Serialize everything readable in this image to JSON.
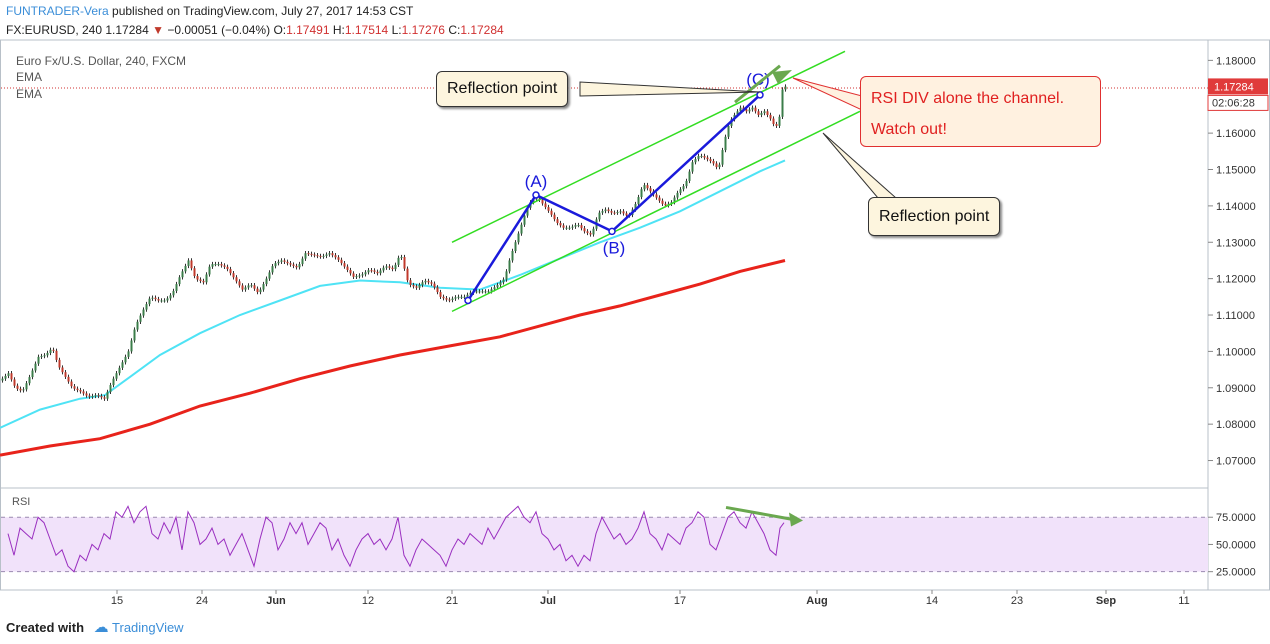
{
  "header": {
    "author": "FUNTRADER-Vera",
    "published": "published on TradingView.com, July 27, 2017 14:53 CST",
    "symbol": "FX:EURUSD, 240",
    "last_price": "1.17284",
    "change": "−0.00051 (−0.04%)",
    "open_label": "O:",
    "open": "1.17491",
    "high_label": "H:",
    "high": "1.17514",
    "low_label": "L:",
    "low": "1.17276",
    "close_label": "C:",
    "close": "1.17284"
  },
  "legend": {
    "title": "Euro Fx/U.S. Dollar, 240, FXCM",
    "ema1": "EMA",
    "ema2": "EMA",
    "rsi": "RSI"
  },
  "annotations": {
    "reflection_top": "Reflection point",
    "reflection_bottom": "Reflection point",
    "rsi_div_line1": "RSI DIV alone the channel.",
    "rsi_div_line2": "Watch out!",
    "wave_a": "(A)",
    "wave_b": "(B)",
    "wave_c": "(C)"
  },
  "price_tags": {
    "last": "1.17284",
    "countdown": "02:06:28"
  },
  "footer": {
    "created_with": "Created with",
    "brand": "TradingView"
  },
  "colors": {
    "up": "#3b7d4a",
    "down": "#c0392b",
    "ema_fast": "#4fe3f5",
    "ema_slow": "#e8231b",
    "channel": "#33dd22",
    "wave": "#1a1adb",
    "rsi_line": "#9a2fc0",
    "rsi_band": "#f1e2fa",
    "arrow": "#6aa84f"
  },
  "chart_data": [
    {
      "type": "candlestick",
      "title": "Euro Fx/U.S. Dollar, 240, FXCM",
      "x_ticks": [
        "15",
        "24",
        "Jun",
        "12",
        "21",
        "Jul",
        "17",
        "Aug",
        "14",
        "23",
        "Sep",
        "11"
      ],
      "y_ticks": [
        "1.18000",
        "1.17000",
        "1.16000",
        "1.15000",
        "1.14000",
        "1.13000",
        "1.12000",
        "1.11000",
        "1.10000",
        "1.09000",
        "1.08000",
        "1.07000"
      ],
      "ylim": [
        1.063,
        1.1845
      ],
      "price_path": [
        [
          0,
          1.092
        ],
        [
          8,
          1.094
        ],
        [
          15,
          1.09
        ],
        [
          22,
          1.089
        ],
        [
          30,
          1.0935
        ],
        [
          38,
          1.0985
        ],
        [
          45,
          1.099
        ],
        [
          52,
          1.101
        ],
        [
          58,
          1.096
        ],
        [
          65,
          1.093
        ],
        [
          72,
          1.09
        ],
        [
          80,
          1.089
        ],
        [
          88,
          1.0875
        ],
        [
          96,
          1.088
        ],
        [
          104,
          1.087
        ],
        [
          112,
          1.092
        ],
        [
          120,
          1.096
        ],
        [
          128,
          1.1
        ],
        [
          135,
          1.107
        ],
        [
          142,
          1.111
        ],
        [
          150,
          1.115
        ],
        [
          158,
          1.114
        ],
        [
          165,
          1.114
        ],
        [
          172,
          1.116
        ],
        [
          180,
          1.121
        ],
        [
          188,
          1.125
        ],
        [
          195,
          1.12
        ],
        [
          203,
          1.119
        ],
        [
          210,
          1.124
        ],
        [
          218,
          1.124
        ],
        [
          226,
          1.123
        ],
        [
          234,
          1.12
        ],
        [
          242,
          1.117
        ],
        [
          250,
          1.1185
        ],
        [
          258,
          1.116
        ],
        [
          266,
          1.12
        ],
        [
          273,
          1.124
        ],
        [
          281,
          1.125
        ],
        [
          289,
          1.124
        ],
        [
          297,
          1.123
        ],
        [
          305,
          1.127
        ],
        [
          313,
          1.1265
        ],
        [
          321,
          1.126
        ],
        [
          329,
          1.127
        ],
        [
          337,
          1.1255
        ],
        [
          345,
          1.123
        ],
        [
          353,
          1.1205
        ],
        [
          361,
          1.121
        ],
        [
          369,
          1.1225
        ],
        [
          377,
          1.1215
        ],
        [
          385,
          1.1235
        ],
        [
          393,
          1.1225
        ],
        [
          400,
          1.127
        ],
        [
          408,
          1.1185
        ],
        [
          416,
          1.1175
        ],
        [
          424,
          1.1195
        ],
        [
          432,
          1.1185
        ],
        [
          440,
          1.115
        ],
        [
          448,
          1.114
        ],
        [
          456,
          1.115
        ],
        [
          464,
          1.115
        ],
        [
          472,
          1.1165
        ],
        [
          480,
          1.1165
        ],
        [
          488,
          1.1165
        ],
        [
          496,
          1.118
        ],
        [
          504,
          1.12
        ],
        [
          510,
          1.126
        ],
        [
          515,
          1.13
        ],
        [
          520,
          1.134
        ],
        [
          526,
          1.139
        ],
        [
          532,
          1.142
        ],
        [
          538,
          1.142
        ],
        [
          544,
          1.14
        ],
        [
          550,
          1.138
        ],
        [
          556,
          1.1355
        ],
        [
          563,
          1.134
        ],
        [
          570,
          1.134
        ],
        [
          577,
          1.135
        ],
        [
          584,
          1.133
        ],
        [
          591,
          1.132
        ],
        [
          598,
          1.138
        ],
        [
          605,
          1.139
        ],
        [
          612,
          1.138
        ],
        [
          620,
          1.1385
        ],
        [
          628,
          1.137
        ],
        [
          636,
          1.141
        ],
        [
          643,
          1.146
        ],
        [
          650,
          1.144
        ],
        [
          657,
          1.142
        ],
        [
          664,
          1.14
        ],
        [
          671,
          1.141
        ],
        [
          678,
          1.144
        ],
        [
          685,
          1.146
        ],
        [
          692,
          1.152
        ],
        [
          699,
          1.154
        ],
        [
          706,
          1.153
        ],
        [
          712,
          1.152
        ],
        [
          718,
          1.15
        ],
        [
          724,
          1.158
        ],
        [
          729,
          1.163
        ],
        [
          734,
          1.165
        ],
        [
          740,
          1.167
        ],
        [
          746,
          1.166
        ],
        [
          752,
          1.167
        ],
        [
          758,
          1.165
        ],
        [
          764,
          1.166
        ],
        [
          770,
          1.164
        ],
        [
          774,
          1.162
        ],
        [
          778,
          1.162
        ],
        [
          782,
          1.172
        ],
        [
          785,
          1.1728
        ]
      ],
      "ema_fast": [
        [
          0,
          1.079
        ],
        [
          40,
          1.084
        ],
        [
          80,
          1.087
        ],
        [
          105,
          1.088
        ],
        [
          130,
          1.093
        ],
        [
          160,
          1.099
        ],
        [
          200,
          1.105
        ],
        [
          240,
          1.11
        ],
        [
          280,
          1.114
        ],
        [
          320,
          1.118
        ],
        [
          360,
          1.1195
        ],
        [
          400,
          1.119
        ],
        [
          440,
          1.1175
        ],
        [
          480,
          1.117
        ],
        [
          520,
          1.121
        ],
        [
          560,
          1.1255
        ],
        [
          600,
          1.13
        ],
        [
          640,
          1.134
        ],
        [
          680,
          1.1385
        ],
        [
          720,
          1.144
        ],
        [
          760,
          1.1495
        ],
        [
          785,
          1.1525
        ]
      ],
      "ema_slow": [
        [
          0,
          1.0715
        ],
        [
          50,
          1.074
        ],
        [
          100,
          1.076
        ],
        [
          150,
          1.08
        ],
        [
          200,
          1.085
        ],
        [
          250,
          1.0885
        ],
        [
          300,
          1.0925
        ],
        [
          350,
          1.096
        ],
        [
          400,
          1.099
        ],
        [
          450,
          1.1015
        ],
        [
          500,
          1.104
        ],
        [
          540,
          1.107
        ],
        [
          580,
          1.11
        ],
        [
          620,
          1.1125
        ],
        [
          660,
          1.1155
        ],
        [
          700,
          1.1185
        ],
        [
          740,
          1.122
        ],
        [
          785,
          1.125
        ]
      ],
      "channel_upper": [
        [
          452,
          1.13
        ],
        [
          845,
          1.1825
        ]
      ],
      "channel_lower": [
        [
          452,
          1.111
        ],
        [
          860,
          1.166
        ]
      ],
      "wave_points": [
        {
          "x": 468,
          "y": 1.114,
          "label": ""
        },
        {
          "x": 536,
          "y": 1.143,
          "label": "(A)"
        },
        {
          "x": 612,
          "y": 1.133,
          "label": "(B)"
        },
        {
          "x": 760,
          "y": 1.1705,
          "label": "(C)"
        }
      ],
      "last_price": 1.17284,
      "current_time_line": 1.1724
    },
    {
      "type": "line",
      "title": "RSI",
      "y_ticks": [
        "75.0000",
        "50.0000",
        "25.0000"
      ],
      "ylim": [
        10,
        100
      ],
      "band": [
        25,
        75
      ],
      "values": [
        [
          8,
          60
        ],
        [
          14,
          40
        ],
        [
          20,
          65
        ],
        [
          26,
          60
        ],
        [
          32,
          55
        ],
        [
          38,
          75
        ],
        [
          44,
          70
        ],
        [
          50,
          55
        ],
        [
          56,
          40
        ],
        [
          62,
          45
        ],
        [
          68,
          30
        ],
        [
          74,
          25
        ],
        [
          80,
          40
        ],
        [
          86,
          35
        ],
        [
          92,
          50
        ],
        [
          98,
          45
        ],
        [
          104,
          60
        ],
        [
          110,
          55
        ],
        [
          116,
          80
        ],
        [
          122,
          75
        ],
        [
          128,
          85
        ],
        [
          134,
          70
        ],
        [
          140,
          80
        ],
        [
          146,
          85
        ],
        [
          152,
          60
        ],
        [
          158,
          55
        ],
        [
          164,
          70
        ],
        [
          170,
          60
        ],
        [
          176,
          75
        ],
        [
          182,
          45
        ],
        [
          188,
          80
        ],
        [
          194,
          70
        ],
        [
          200,
          50
        ],
        [
          206,
          55
        ],
        [
          212,
          65
        ],
        [
          218,
          50
        ],
        [
          224,
          55
        ],
        [
          230,
          40
        ],
        [
          236,
          50
        ],
        [
          242,
          60
        ],
        [
          248,
          45
        ],
        [
          254,
          30
        ],
        [
          260,
          55
        ],
        [
          266,
          75
        ],
        [
          272,
          70
        ],
        [
          278,
          45
        ],
        [
          284,
          55
        ],
        [
          290,
          70
        ],
        [
          296,
          60
        ],
        [
          302,
          70
        ],
        [
          308,
          50
        ],
        [
          314,
          60
        ],
        [
          320,
          70
        ],
        [
          326,
          65
        ],
        [
          332,
          45
        ],
        [
          338,
          55
        ],
        [
          344,
          40
        ],
        [
          350,
          30
        ],
        [
          356,
          45
        ],
        [
          362,
          55
        ],
        [
          368,
          60
        ],
        [
          374,
          50
        ],
        [
          380,
          55
        ],
        [
          386,
          45
        ],
        [
          392,
          55
        ],
        [
          398,
          75
        ],
        [
          404,
          40
        ],
        [
          410,
          30
        ],
        [
          416,
          45
        ],
        [
          422,
          55
        ],
        [
          428,
          50
        ],
        [
          434,
          45
        ],
        [
          440,
          40
        ],
        [
          446,
          30
        ],
        [
          452,
          45
        ],
        [
          458,
          55
        ],
        [
          464,
          50
        ],
        [
          470,
          60
        ],
        [
          476,
          55
        ],
        [
          482,
          50
        ],
        [
          488,
          65
        ],
        [
          494,
          55
        ],
        [
          500,
          65
        ],
        [
          506,
          75
        ],
        [
          512,
          80
        ],
        [
          518,
          85
        ],
        [
          524,
          75
        ],
        [
          530,
          70
        ],
        [
          536,
          80
        ],
        [
          542,
          60
        ],
        [
          548,
          55
        ],
        [
          554,
          45
        ],
        [
          560,
          50
        ],
        [
          566,
          35
        ],
        [
          572,
          40
        ],
        [
          578,
          30
        ],
        [
          584,
          40
        ],
        [
          590,
          35
        ],
        [
          596,
          60
        ],
        [
          602,
          75
        ],
        [
          608,
          65
        ],
        [
          614,
          55
        ],
        [
          620,
          60
        ],
        [
          626,
          50
        ],
        [
          632,
          55
        ],
        [
          638,
          65
        ],
        [
          644,
          80
        ],
        [
          650,
          60
        ],
        [
          656,
          55
        ],
        [
          662,
          45
        ],
        [
          668,
          60
        ],
        [
          674,
          55
        ],
        [
          680,
          50
        ],
        [
          686,
          65
        ],
        [
          692,
          70
        ],
        [
          698,
          80
        ],
        [
          704,
          75
        ],
        [
          710,
          50
        ],
        [
          716,
          45
        ],
        [
          722,
          60
        ],
        [
          728,
          75
        ],
        [
          734,
          80
        ],
        [
          740,
          70
        ],
        [
          746,
          65
        ],
        [
          752,
          80
        ],
        [
          758,
          70
        ],
        [
          764,
          60
        ],
        [
          770,
          45
        ],
        [
          776,
          40
        ],
        [
          780,
          65
        ],
        [
          784,
          70
        ]
      ],
      "divergence_arrow": [
        [
          726,
          84
        ],
        [
          803,
          72
        ]
      ]
    }
  ]
}
